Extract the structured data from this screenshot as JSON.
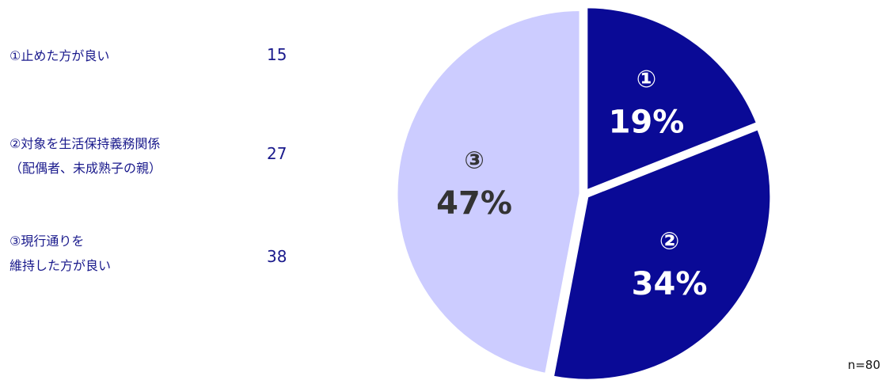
{
  "chart_data": {
    "type": "pie",
    "categories": [
      "①止めた方が良い",
      "②対象を生活保持義務関係\n（配偶者、未成熟子の親）",
      "③現行通りを\n維持した方が良い"
    ],
    "counts": [
      15,
      27,
      38
    ],
    "values": [
      19,
      34,
      47
    ],
    "value_labels": [
      "19%",
      "34%",
      "47%"
    ],
    "slice_labels": [
      "①",
      "②",
      "③"
    ],
    "colors": [
      "#0a0a96",
      "#0a0a96",
      "#ccccff"
    ],
    "label_colors": [
      "#ffffff",
      "#ffffff",
      "#333333"
    ],
    "note": "n=80"
  }
}
